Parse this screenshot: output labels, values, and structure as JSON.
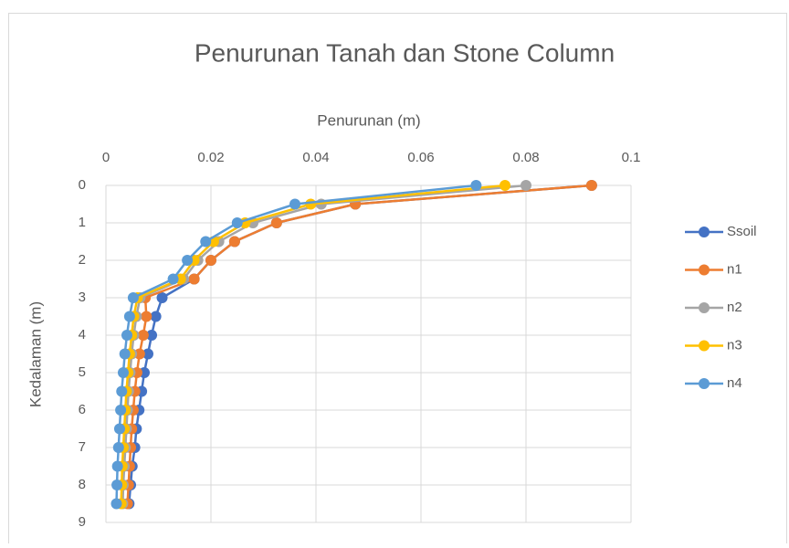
{
  "chart_data": {
    "type": "line",
    "title": "Penurunan Tanah dan Stone Column",
    "xlabel": "Penurunan (m)",
    "ylabel": "Kedalaman (m)",
    "y": [
      0,
      0.5,
      1,
      1.5,
      2,
      2.5,
      3,
      3.5,
      4,
      4.5,
      5,
      5.5,
      6,
      6.5,
      7,
      7.5,
      8,
      8.5
    ],
    "series": [
      {
        "name": "Ssoil",
        "color": "#4472c4",
        "values": [
          0.0925,
          0.0475,
          0.0325,
          0.0245,
          0.02,
          0.0168,
          0.0107,
          0.0095,
          0.0087,
          0.008,
          0.0073,
          0.0068,
          0.0063,
          0.0058,
          0.0055,
          0.005,
          0.0047,
          0.0044
        ]
      },
      {
        "name": "n1",
        "color": "#ed7d31",
        "values": [
          0.0925,
          0.0475,
          0.0325,
          0.0245,
          0.02,
          0.0168,
          0.0075,
          0.0077,
          0.0071,
          0.0064,
          0.0059,
          0.0055,
          0.0052,
          0.0049,
          0.0047,
          0.0045,
          0.0043,
          0.0041
        ]
      },
      {
        "name": "n2",
        "color": "#a5a5a5",
        "values": [
          0.08,
          0.041,
          0.028,
          0.0215,
          0.0175,
          0.0148,
          0.0065,
          0.0058,
          0.0053,
          0.0049,
          0.0046,
          0.0043,
          0.0041,
          0.0039,
          0.0037,
          0.0035,
          0.0033,
          0.0032
        ]
      },
      {
        "name": "n3",
        "color": "#ffc000",
        "values": [
          0.076,
          0.039,
          0.0265,
          0.0205,
          0.0168,
          0.0142,
          0.006,
          0.0053,
          0.0049,
          0.0045,
          0.0042,
          0.0039,
          0.0037,
          0.0035,
          0.0033,
          0.0031,
          0.003,
          0.0029
        ]
      },
      {
        "name": "n4",
        "color": "#5b9bd5",
        "values": [
          0.0705,
          0.036,
          0.025,
          0.019,
          0.0155,
          0.0128,
          0.0052,
          0.0045,
          0.004,
          0.0036,
          0.0033,
          0.003,
          0.0028,
          0.0026,
          0.0024,
          0.0022,
          0.0021,
          0.002
        ]
      }
    ],
    "xlim": [
      0,
      0.1
    ],
    "xticks": [
      0,
      0.02,
      0.04,
      0.06,
      0.08,
      0.1
    ],
    "ylim": [
      0,
      9
    ],
    "yticks": [
      0,
      1,
      2,
      3,
      4,
      5,
      6,
      7,
      8,
      9
    ],
    "y_inverted": true,
    "x_axis_position": "top",
    "grid": true,
    "legend": "right"
  }
}
